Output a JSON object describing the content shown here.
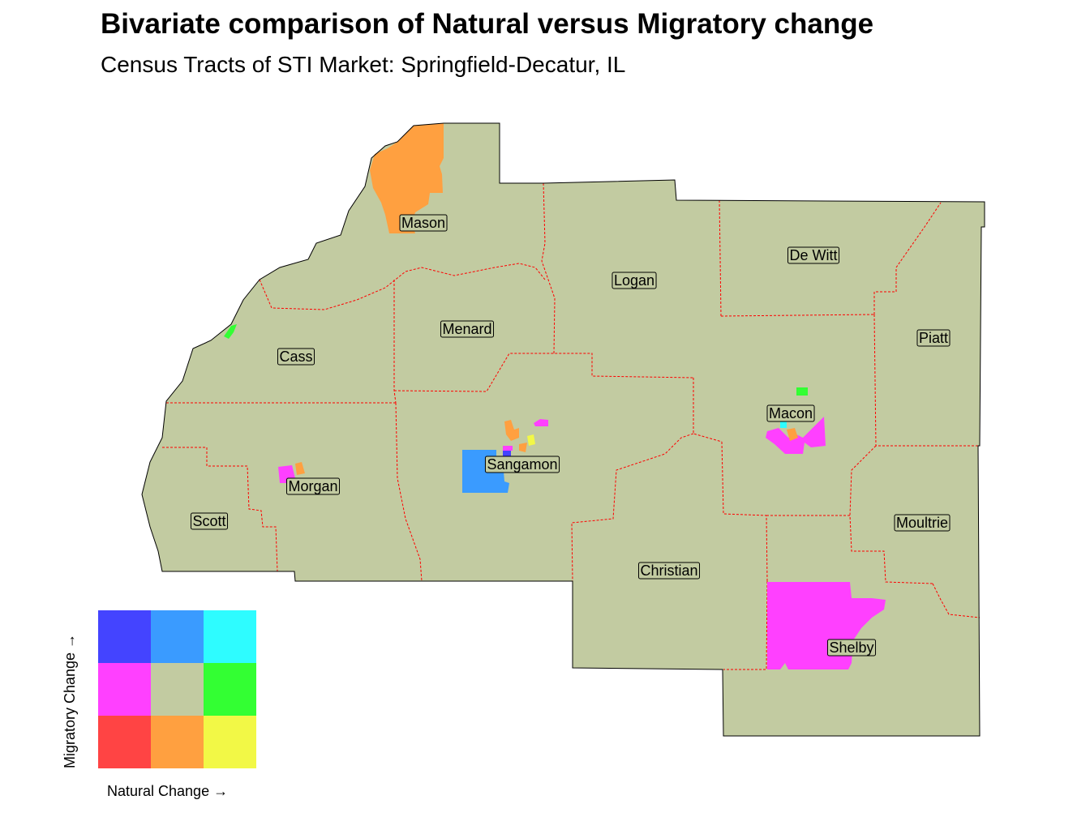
{
  "title": "Bivariate comparison of Natural versus Migratory change",
  "subtitle": "Census Tracts of STI Market: Springfield-Decatur, IL",
  "colors": {
    "base": "#c2cba1",
    "border": "#ff0000",
    "outline": "#000000",
    "label_bg": "#c2cba1"
  },
  "counties": [
    {
      "name": "Mason"
    },
    {
      "name": "Logan"
    },
    {
      "name": "De Witt"
    },
    {
      "name": "Piatt"
    },
    {
      "name": "Menard"
    },
    {
      "name": "Cass"
    },
    {
      "name": "Macon"
    },
    {
      "name": "Sangamon"
    },
    {
      "name": "Morgan"
    },
    {
      "name": "Scott"
    },
    {
      "name": "Moultrie"
    },
    {
      "name": "Christian"
    },
    {
      "name": "Shelby"
    }
  ],
  "legend": {
    "x_label": "Natural Change →",
    "y_label": "Migratory Change →",
    "grid_colors": [
      [
        "#4444ff",
        "#3a9bff",
        "#2efcff"
      ],
      [
        "#ff40ff",
        "#c2cba1",
        "#33ff33"
      ],
      [
        "#ff4444",
        "#ffa040",
        "#f2f846"
      ]
    ]
  }
}
